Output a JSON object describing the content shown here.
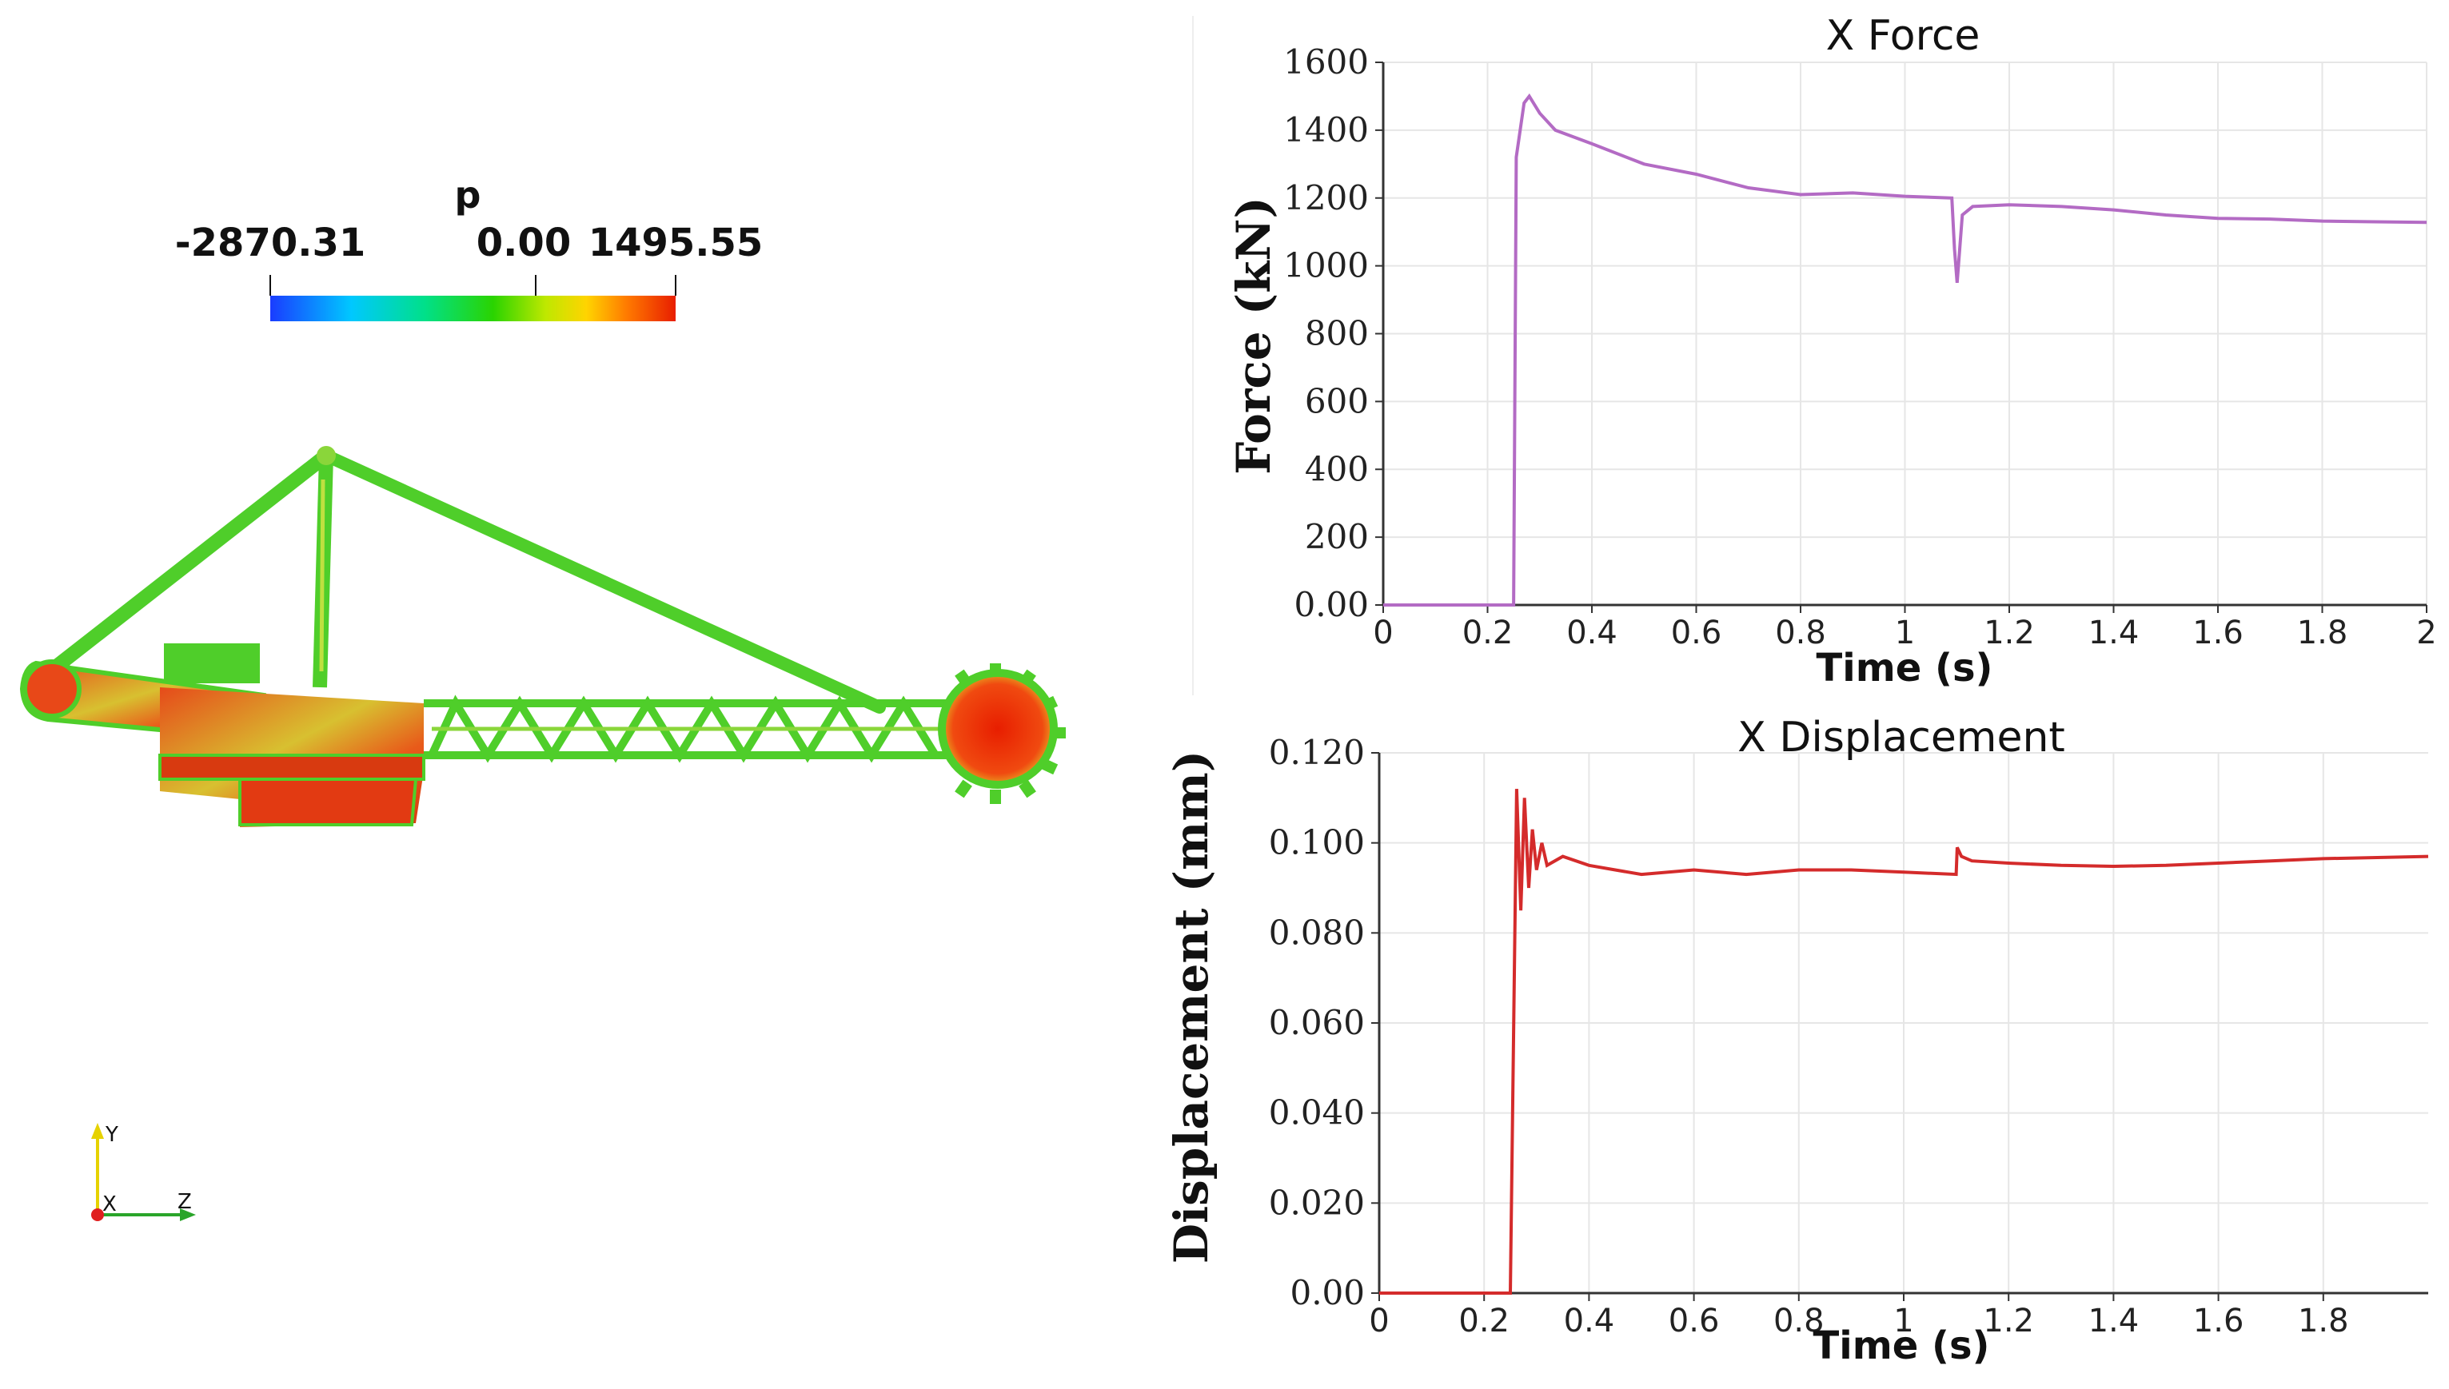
{
  "colorbar": {
    "title": "p",
    "min_label": "-2870.31",
    "mid_label": "0.00",
    "max_label": "1495.55",
    "min": -2870.31,
    "max": 1495.55,
    "colors": [
      "#1a3cff",
      "#00c8ff",
      "#00e08a",
      "#2ad400",
      "#bfe800",
      "#ffd400",
      "#ff7a00",
      "#e81e00"
    ]
  },
  "orientation_axes": {
    "y_label": "Y",
    "x_label": "X",
    "z_label": "Z"
  },
  "colors": {
    "force_line": "#b36bc4",
    "disp_line": "#d42b2b",
    "grid": "#e6e6e6",
    "axis": "#333333",
    "sim_green": "#4fce2a",
    "sim_red": "#e0401a",
    "sim_yellow": "#d8dd3a"
  },
  "chart_data": [
    {
      "type": "line",
      "title": "X Force",
      "xlabel": "Time (s)",
      "ylabel": "Force (kN)",
      "xlim": [
        0,
        2
      ],
      "ylim": [
        0,
        1600
      ],
      "xticks": [
        0,
        0.2,
        0.4,
        0.6,
        0.8,
        1,
        1.2,
        1.4,
        1.6,
        1.8,
        2
      ],
      "xtick_labels": [
        "0",
        "0.2",
        "0.4",
        "0.6",
        "0.8",
        "1",
        "1.2",
        "1.4",
        "1.6",
        "1.8",
        "2"
      ],
      "yticks": [
        0,
        200,
        400,
        600,
        800,
        1000,
        1200,
        1400,
        1600
      ],
      "ytick_labels": [
        "0.00",
        "200",
        "400",
        "600",
        "800",
        "1000",
        "1200",
        "1400",
        "1600"
      ],
      "grid": true,
      "series": [
        {
          "x": [
            0,
            0.24,
            0.25,
            0.255,
            0.27,
            0.28,
            0.3,
            0.33,
            0.4,
            0.5,
            0.6,
            0.7,
            0.8,
            0.9,
            1.0,
            1.09,
            1.095,
            1.1,
            1.11,
            1.13,
            1.2,
            1.3,
            1.4,
            1.5,
            1.6,
            1.7,
            1.8,
            1.9,
            2.0
          ],
          "y": [
            0,
            0,
            0,
            1320,
            1480,
            1500,
            1450,
            1400,
            1360,
            1300,
            1270,
            1230,
            1210,
            1215,
            1205,
            1200,
            1050,
            950,
            1150,
            1175,
            1180,
            1175,
            1165,
            1150,
            1140,
            1138,
            1132,
            1130,
            1128
          ]
        }
      ]
    },
    {
      "type": "line",
      "title": "X Displacement",
      "xlabel": "Time (s)",
      "ylabel": "Displacement (mm)",
      "xlim": [
        0,
        2
      ],
      "ylim": [
        0,
        0.12
      ],
      "xticks": [
        0,
        0.2,
        0.4,
        0.6,
        0.8,
        1,
        1.2,
        1.4,
        1.6,
        1.8
      ],
      "xtick_labels": [
        "0",
        "0.2",
        "0.4",
        "0.6",
        "0.8",
        "1",
        "1.2",
        "1.4",
        "1.6",
        "1.8"
      ],
      "yticks": [
        0,
        0.02,
        0.04,
        0.06,
        0.08,
        0.1,
        0.12
      ],
      "ytick_labels": [
        "0.00",
        "0.020",
        "0.040",
        "0.060",
        "0.080",
        "0.100",
        "0.120"
      ],
      "grid": true,
      "series": [
        {
          "x": [
            0,
            0.25,
            0.262,
            0.27,
            0.277,
            0.285,
            0.292,
            0.3,
            0.31,
            0.32,
            0.35,
            0.4,
            0.45,
            0.5,
            0.6,
            0.7,
            0.8,
            0.9,
            1.0,
            1.1,
            1.102,
            1.11,
            1.13,
            1.2,
            1.3,
            1.4,
            1.5,
            1.6,
            1.7,
            1.8,
            2.0
          ],
          "y": [
            0,
            0,
            0.112,
            0.085,
            0.11,
            0.09,
            0.103,
            0.094,
            0.1,
            0.095,
            0.097,
            0.095,
            0.094,
            0.093,
            0.094,
            0.093,
            0.094,
            0.094,
            0.0935,
            0.093,
            0.099,
            0.097,
            0.096,
            0.0955,
            0.095,
            0.0948,
            0.095,
            0.0955,
            0.096,
            0.0965,
            0.097
          ]
        }
      ]
    }
  ]
}
